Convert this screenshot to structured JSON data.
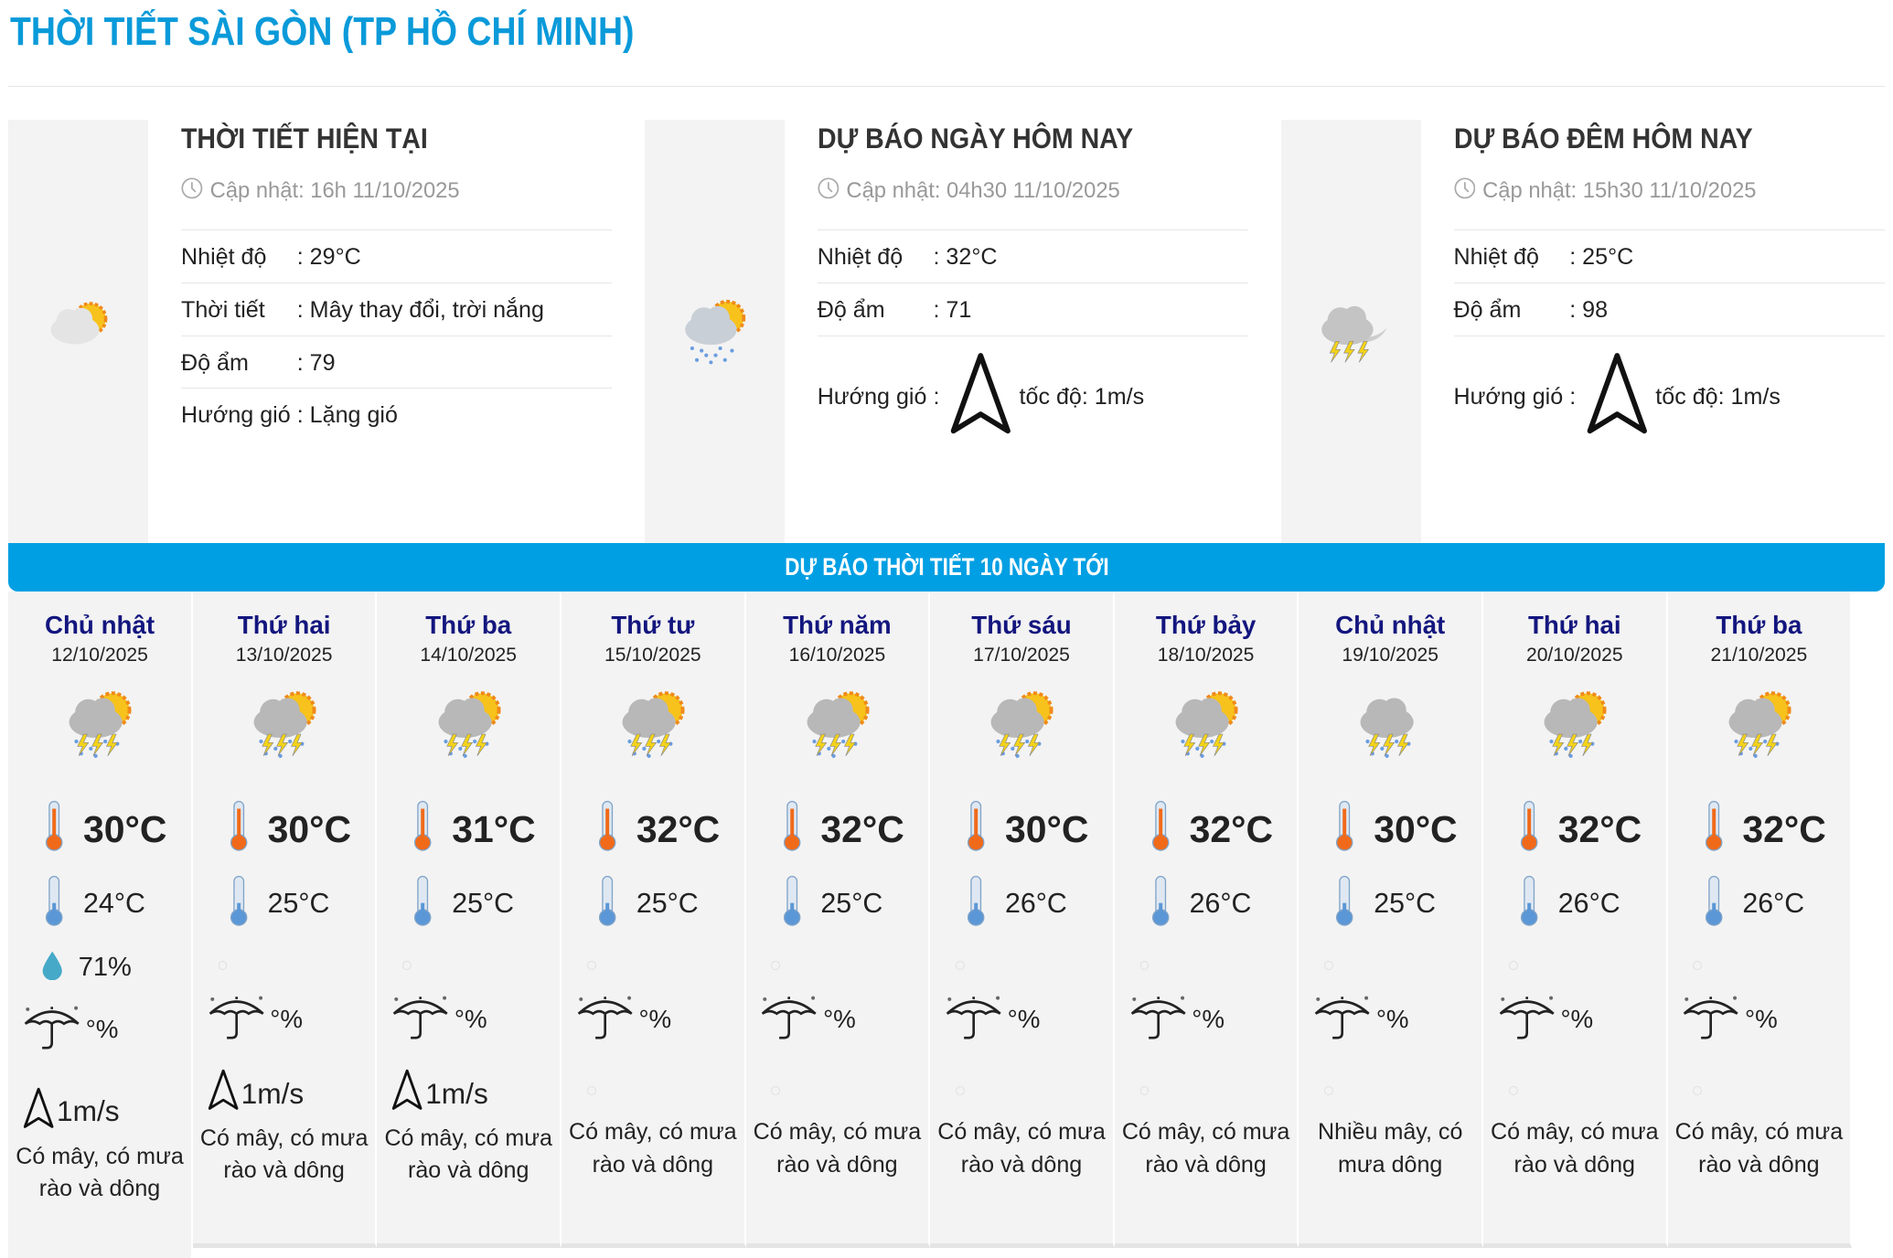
{
  "page_title": "THỜI TIẾT SÀI GÒN (TP HỒ CHÍ MINH)",
  "colors": {
    "accent": "#0a9ad9",
    "bar": "#009fe3",
    "day_name": "#13167e"
  },
  "panels": [
    {
      "title": "THỜI TIẾT HIỆN TẠI",
      "updated": "Cập nhật: 16h 11/10/2025",
      "icon": "sun-cloud-icon",
      "rows": [
        {
          "k": "Nhiệt độ",
          "v": ": 29°C"
        },
        {
          "k": "Thời tiết",
          "v": ": Mây thay đổi, trời nắng"
        },
        {
          "k": "Độ ẩm",
          "v": ": 79"
        },
        {
          "k": "Hướng gió",
          "v": ": Lặng gió"
        }
      ]
    },
    {
      "title": "DỰ BÁO NGÀY HÔM NAY",
      "updated": "Cập nhật: 04h30 11/10/2025",
      "icon": "sun-cloud-rain-icon",
      "rows": [
        {
          "k": "Nhiệt độ",
          "v": ": 32°C"
        },
        {
          "k": "Độ ẩm",
          "v": ": 71"
        },
        {
          "k": "Hướng gió",
          "v": ":",
          "speed": "tốc độ: 1m/s"
        }
      ]
    },
    {
      "title": "DỰ BÁO ĐÊM HÔM NAY",
      "updated": "Cập nhật: 15h30 11/10/2025",
      "icon": "moon-cloud-storm-icon",
      "rows": [
        {
          "k": "Nhiệt độ",
          "v": ": 25°C"
        },
        {
          "k": "Độ ẩm",
          "v": ": 98"
        },
        {
          "k": "Hướng gió",
          "v": ":",
          "speed": "tốc độ: 1m/s"
        }
      ]
    }
  ],
  "forecast_title": "DỰ BÁO THỜI TIẾT 10 NGÀY TỚI",
  "days": [
    {
      "name": "Chủ nhật",
      "date": "12/10/2025",
      "max": "30°C",
      "min": "24°C",
      "humidity": "71%",
      "rain": "°%",
      "wind": "1m/s",
      "desc": "Có mây, có mưa rào và dông",
      "sun": true
    },
    {
      "name": "Thứ hai",
      "date": "13/10/2025",
      "max": "30°C",
      "min": "25°C",
      "humidity": "",
      "rain": "°%",
      "wind": "1m/s",
      "desc": "Có mây, có mưa rào và dông",
      "sun": true
    },
    {
      "name": "Thứ ba",
      "date": "14/10/2025",
      "max": "31°C",
      "min": "25°C",
      "humidity": "",
      "rain": "°%",
      "wind": "1m/s",
      "desc": "Có mây, có mưa rào và dông",
      "sun": true
    },
    {
      "name": "Thứ tư",
      "date": "15/10/2025",
      "max": "32°C",
      "min": "25°C",
      "humidity": "",
      "rain": "°%",
      "wind": "",
      "desc": "Có mây, có mưa rào và dông",
      "sun": true
    },
    {
      "name": "Thứ năm",
      "date": "16/10/2025",
      "max": "32°C",
      "min": "25°C",
      "humidity": "",
      "rain": "°%",
      "wind": "",
      "desc": "Có mây, có mưa rào và dông",
      "sun": true
    },
    {
      "name": "Thứ sáu",
      "date": "17/10/2025",
      "max": "30°C",
      "min": "26°C",
      "humidity": "",
      "rain": "°%",
      "wind": "",
      "desc": "Có mây, có mưa rào và dông",
      "sun": true
    },
    {
      "name": "Thứ bảy",
      "date": "18/10/2025",
      "max": "32°C",
      "min": "26°C",
      "humidity": "",
      "rain": "°%",
      "wind": "",
      "desc": "Có mây, có mưa rào và dông",
      "sun": true
    },
    {
      "name": "Chủ nhật",
      "date": "19/10/2025",
      "max": "30°C",
      "min": "25°C",
      "humidity": "",
      "rain": "°%",
      "wind": "",
      "desc": "Nhiều mây, có mưa dông",
      "sun": false
    },
    {
      "name": "Thứ hai",
      "date": "20/10/2025",
      "max": "32°C",
      "min": "26°C",
      "humidity": "",
      "rain": "°%",
      "wind": "",
      "desc": "Có mây, có mưa rào và dông",
      "sun": true
    },
    {
      "name": "Thứ ba",
      "date": "21/10/2025",
      "max": "32°C",
      "min": "26°C",
      "humidity": "",
      "rain": "°%",
      "wind": "",
      "desc": "Có mây, có mưa rào và dông",
      "sun": true
    }
  ]
}
